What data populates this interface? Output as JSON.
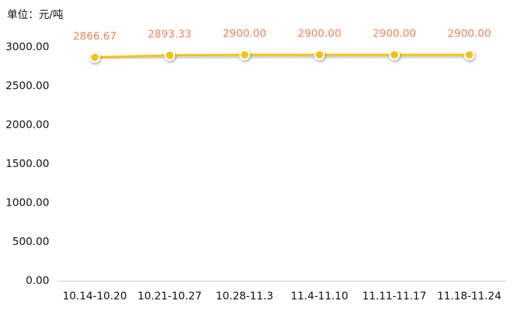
{
  "chart_data": {
    "type": "line",
    "y_label": "单位：元/吨",
    "categories": [
      "10.14-10.20",
      "10.21-10.27",
      "10.28-11.3",
      "11.4-11.10",
      "11.11-11.17",
      "11.18-11.24"
    ],
    "values": [
      2866.67,
      2893.33,
      2900,
      2900,
      2900,
      2900
    ],
    "value_labels": [
      "2866.67",
      "2893.33",
      "2900.00",
      "2900.00",
      "2900.00",
      "2900.00"
    ],
    "color": "#f5c211",
    "label_color": "#f0845a",
    "ylim": [
      0,
      3000
    ],
    "yticks": [
      {
        "value": 0,
        "label": "0.00"
      },
      {
        "value": 500,
        "label": "500.00"
      },
      {
        "value": 1000,
        "label": "1000.00"
      },
      {
        "value": 1500,
        "label": "1500.00"
      },
      {
        "value": 2000,
        "label": "2000.00"
      },
      {
        "value": 2500,
        "label": "2500.00"
      },
      {
        "value": 3000,
        "label": "3000.00"
      }
    ],
    "grid": false
  }
}
